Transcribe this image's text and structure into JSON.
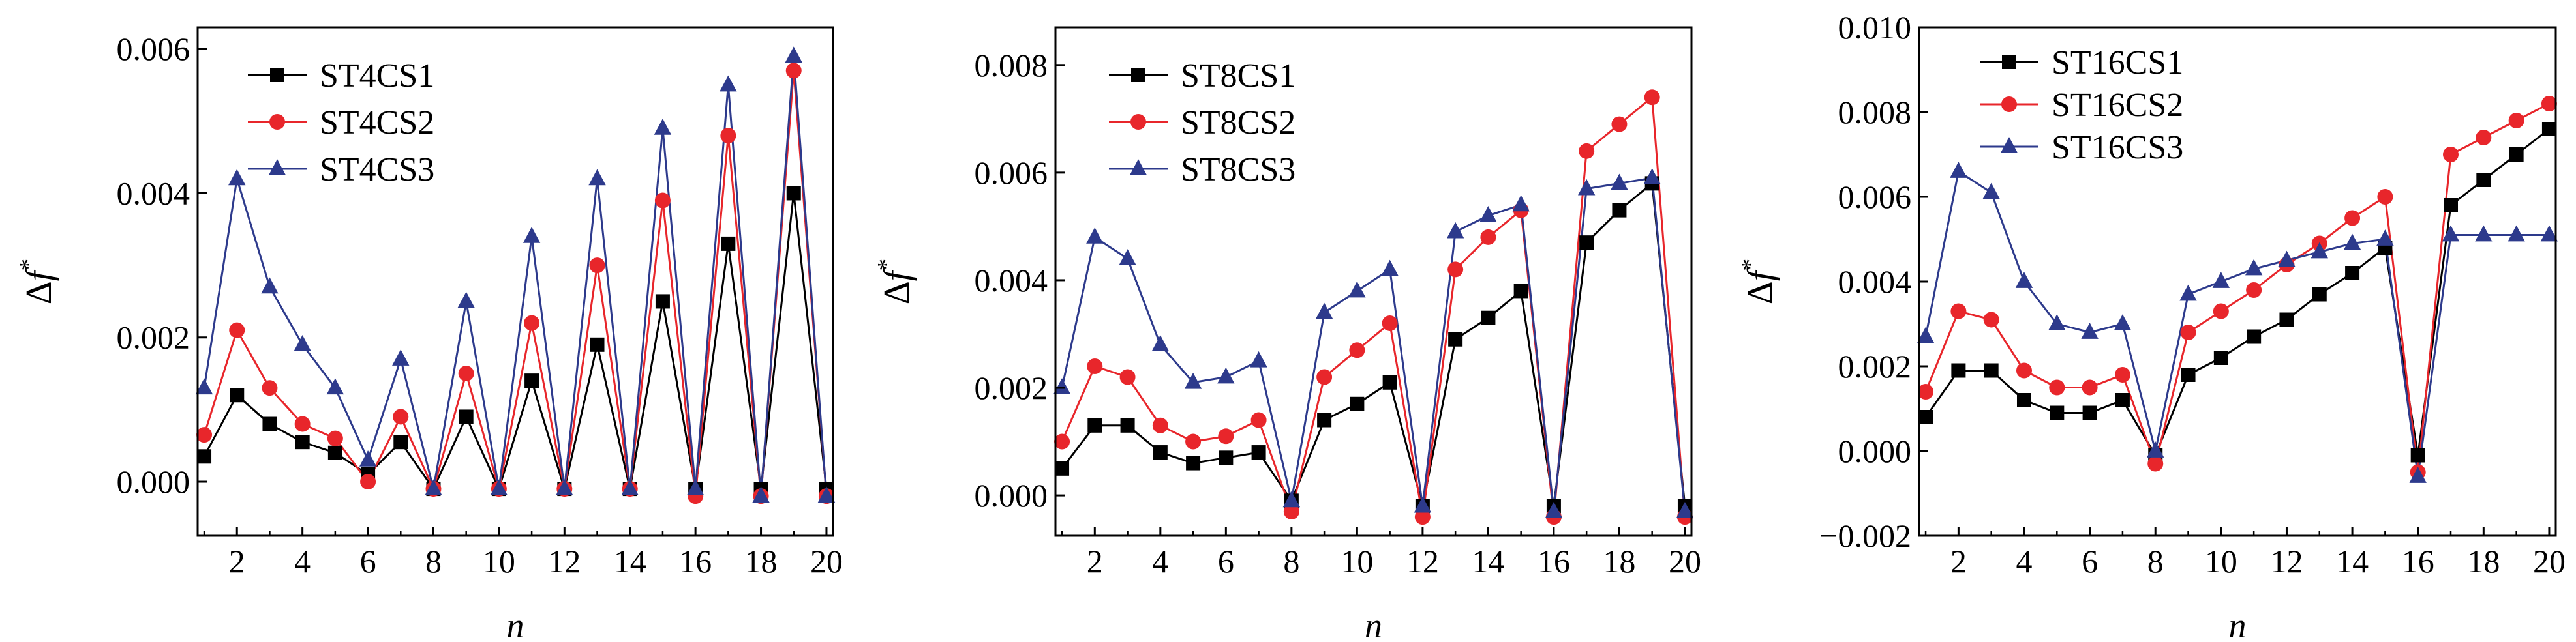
{
  "figure": {
    "panels": [
      "panel-1",
      "panel-2",
      "panel-3"
    ]
  },
  "chart_data": [
    {
      "type": "line",
      "title": "",
      "xlabel": "n",
      "ylabel": "Δf*",
      "xlim": [
        0.8,
        20.2
      ],
      "ylim": [
        -0.00075,
        0.0063
      ],
      "x_ticks": [
        2,
        4,
        6,
        8,
        10,
        12,
        14,
        16,
        18,
        20
      ],
      "y_ticks": [
        0.0,
        0.002,
        0.004,
        0.006
      ],
      "y_tick_labels": [
        "0.000",
        "0.002",
        "0.004",
        "0.006"
      ],
      "grid": false,
      "legend_position": "top-left",
      "x": [
        1,
        2,
        3,
        4,
        5,
        6,
        7,
        8,
        9,
        10,
        11,
        12,
        13,
        14,
        15,
        16,
        17,
        18,
        19,
        20
      ],
      "series": [
        {
          "name": "ST4CS1",
          "color": "#000000",
          "marker": "square",
          "values": [
            0.00035,
            0.0012,
            0.0008,
            0.00055,
            0.0004,
            0.0001,
            0.00055,
            -0.0001,
            0.0009,
            -0.0001,
            0.0014,
            -0.0001,
            0.0019,
            -0.0001,
            0.0025,
            -0.0001,
            0.0033,
            -0.0001,
            0.004,
            -0.0001
          ]
        },
        {
          "name": "ST4CS2",
          "color": "#e8262b",
          "marker": "circle",
          "values": [
            0.00065,
            0.0021,
            0.0013,
            0.0008,
            0.0006,
            0.0,
            0.0009,
            -0.0001,
            0.0015,
            -0.0001,
            0.0022,
            -0.0001,
            0.003,
            -0.0001,
            0.0039,
            -0.0002,
            0.0048,
            -0.0002,
            0.0057,
            -0.0002
          ]
        },
        {
          "name": "ST4CS3",
          "color": "#2d3a8c",
          "marker": "triangle",
          "values": [
            0.0013,
            0.0042,
            0.0027,
            0.0019,
            0.0013,
            0.0003,
            0.0017,
            -0.0001,
            0.0025,
            -0.0001,
            0.0034,
            -0.0001,
            0.0042,
            -0.0001,
            0.0049,
            -0.0001,
            0.0055,
            -0.0002,
            0.0059,
            -0.0002
          ]
        }
      ]
    },
    {
      "type": "line",
      "title": "",
      "xlabel": "n",
      "ylabel": "Δf*",
      "xlim": [
        0.8,
        20.2
      ],
      "ylim": [
        -0.00075,
        0.0087
      ],
      "x_ticks": [
        2,
        4,
        6,
        8,
        10,
        12,
        14,
        16,
        18,
        20
      ],
      "y_ticks": [
        0.0,
        0.002,
        0.004,
        0.006,
        0.008
      ],
      "y_tick_labels": [
        "0.000",
        "0.002",
        "0.004",
        "0.006",
        "0.008"
      ],
      "grid": false,
      "legend_position": "top-left",
      "x": [
        1,
        2,
        3,
        4,
        5,
        6,
        7,
        8,
        9,
        10,
        11,
        12,
        13,
        14,
        15,
        16,
        17,
        18,
        19,
        20
      ],
      "series": [
        {
          "name": "ST8CS1",
          "color": "#000000",
          "marker": "square",
          "values": [
            0.0005,
            0.0013,
            0.0013,
            0.0008,
            0.0006,
            0.0007,
            0.0008,
            -0.0001,
            0.0014,
            0.0017,
            0.0021,
            -0.0002,
            0.0029,
            0.0033,
            0.0038,
            -0.0002,
            0.0047,
            0.0053,
            0.0058,
            -0.0002
          ]
        },
        {
          "name": "ST8CS2",
          "color": "#e8262b",
          "marker": "circle",
          "values": [
            0.001,
            0.0024,
            0.0022,
            0.0013,
            0.001,
            0.0011,
            0.0014,
            -0.0003,
            0.0022,
            0.0027,
            0.0032,
            -0.0004,
            0.0042,
            0.0048,
            0.0053,
            -0.0004,
            0.0064,
            0.0069,
            0.0074,
            -0.0004
          ]
        },
        {
          "name": "ST8CS3",
          "color": "#2d3a8c",
          "marker": "triangle",
          "values": [
            0.002,
            0.0048,
            0.0044,
            0.0028,
            0.0021,
            0.0022,
            0.0025,
            -0.0001,
            0.0034,
            0.0038,
            0.0042,
            -0.0002,
            0.0049,
            0.0052,
            0.0054,
            -0.0003,
            0.0057,
            0.0058,
            0.0059,
            -0.0003
          ]
        }
      ]
    },
    {
      "type": "line",
      "title": "",
      "xlabel": "n",
      "ylabel": "Δf*",
      "xlim": [
        0.8,
        20.2
      ],
      "ylim": [
        -0.002,
        0.01
      ],
      "x_ticks": [
        2,
        4,
        6,
        8,
        10,
        12,
        14,
        16,
        18,
        20
      ],
      "y_ticks": [
        -0.002,
        0.0,
        0.002,
        0.004,
        0.006,
        0.008,
        0.01
      ],
      "y_tick_labels": [
        "−0.002",
        "0.000",
        "0.002",
        "0.004",
        "0.006",
        "0.008",
        "0.010"
      ],
      "grid": false,
      "legend_position": "top-left",
      "x": [
        1,
        2,
        3,
        4,
        5,
        6,
        7,
        8,
        9,
        10,
        11,
        12,
        13,
        14,
        15,
        16,
        17,
        18,
        19,
        20
      ],
      "series": [
        {
          "name": "ST16CS1",
          "color": "#000000",
          "marker": "square",
          "values": [
            0.0008,
            0.0019,
            0.0019,
            0.0012,
            0.0009,
            0.0009,
            0.0012,
            -0.0001,
            0.0018,
            0.0022,
            0.0027,
            0.0031,
            0.0037,
            0.0042,
            0.0048,
            -0.0001,
            0.0058,
            0.0064,
            0.007,
            0.0076
          ]
        },
        {
          "name": "ST16CS2",
          "color": "#e8262b",
          "marker": "circle",
          "values": [
            0.0014,
            0.0033,
            0.0031,
            0.0019,
            0.0015,
            0.0015,
            0.0018,
            -0.0003,
            0.0028,
            0.0033,
            0.0038,
            0.0044,
            0.0049,
            0.0055,
            0.006,
            -0.0005,
            0.007,
            0.0074,
            0.0078,
            0.0082
          ]
        },
        {
          "name": "ST16CS3",
          "color": "#2d3a8c",
          "marker": "triangle",
          "values": [
            0.0027,
            0.0066,
            0.0061,
            0.004,
            0.003,
            0.0028,
            0.003,
            0.0,
            0.0037,
            0.004,
            0.0043,
            0.0045,
            0.0047,
            0.0049,
            0.005,
            -0.0006,
            0.0051,
            0.0051,
            0.0051,
            0.0051
          ]
        }
      ]
    }
  ]
}
